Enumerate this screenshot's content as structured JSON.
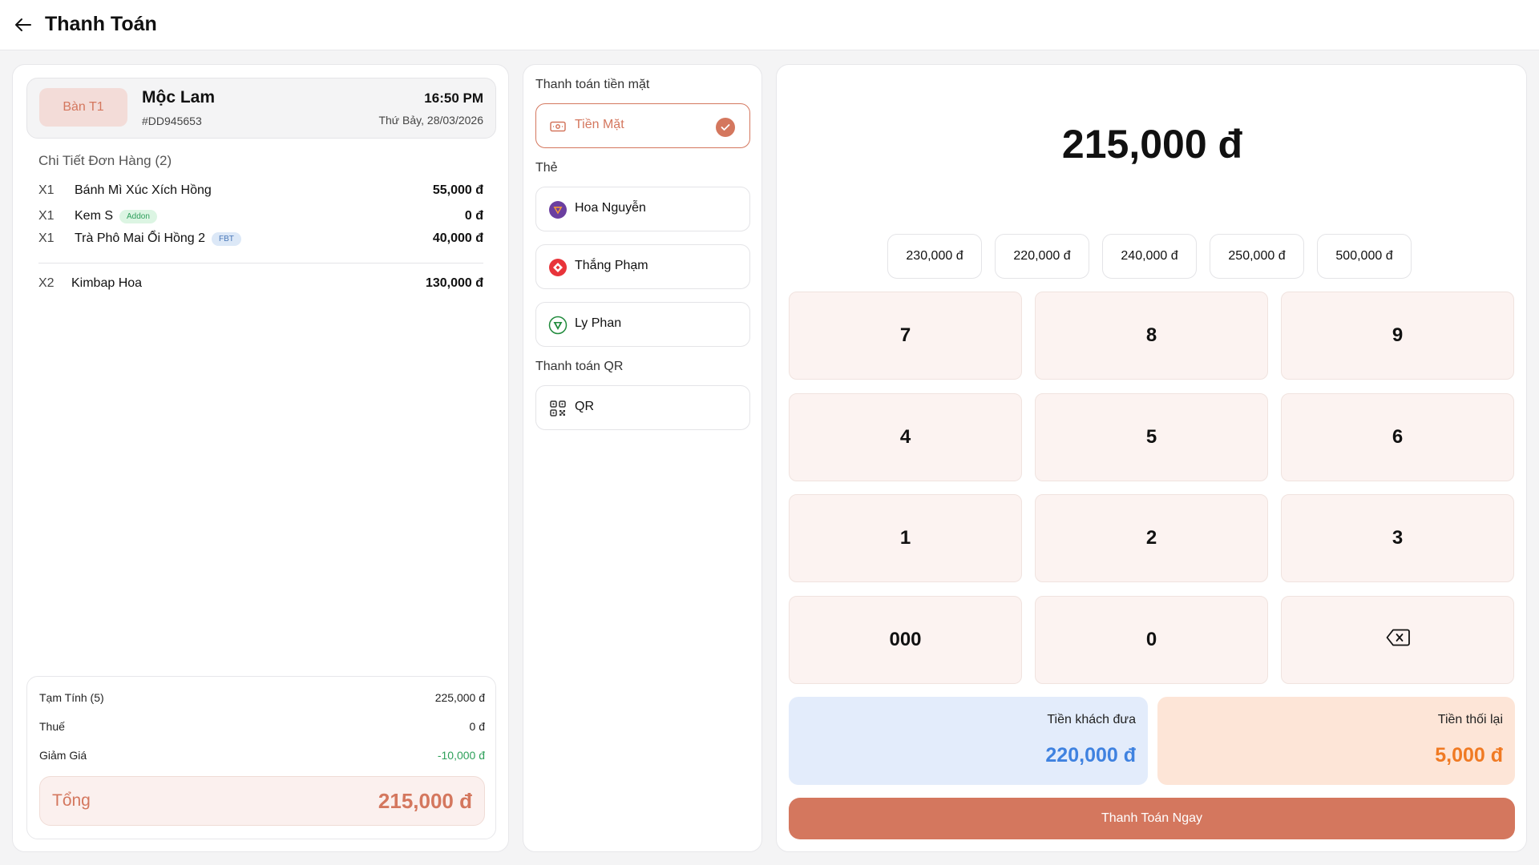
{
  "header": {
    "title": "Thanh Toán"
  },
  "order": {
    "table": "Bàn T1",
    "customer": "Mộc Lam",
    "id": "#DD945653",
    "time": "16:50 PM",
    "date": "Thứ Bảy, 28/03/2026",
    "detail_title": "Chi Tiết Đơn Hàng (2)",
    "items": [
      {
        "qty": "X1",
        "name": "Bánh Mì Xúc Xích Hồng",
        "price": "55,000 đ",
        "tag": ""
      },
      {
        "qty": "X1",
        "name": "Kem S",
        "price": "0 đ",
        "tag": "Addon"
      },
      {
        "qty": "X1",
        "name": "Trà Phô Mai Ổi Hồng 2",
        "price": "40,000 đ",
        "tag": "FBT"
      },
      {
        "qty": "X2",
        "name": "Kimbap Hoa",
        "price": "130,000 đ",
        "tag": ""
      }
    ]
  },
  "summary": {
    "subtotal_label": "Tạm Tính (5)",
    "subtotal": "225,000 đ",
    "tax_label": "Thuế",
    "tax": "0 đ",
    "discount_label": "Giảm Giá",
    "discount": "-10,000 đ",
    "total_label": "Tổng",
    "total": "215,000 đ"
  },
  "payment": {
    "cash_title": "Thanh toán tiền mặt",
    "cash_label": "Tiền Mặt",
    "card_title": "Thẻ",
    "cards": [
      {
        "name": "Hoa Nguyễn",
        "icon": "brand-triangle-icon",
        "color": "#6b3fa0"
      },
      {
        "name": "Thắng Phạm",
        "icon": "brand-diamond-icon",
        "color": "#e8343a"
      },
      {
        "name": "Ly Phan",
        "icon": "brand-shield-icon",
        "color": "#1f8a3b"
      }
    ],
    "qr_title": "Thanh toán QR",
    "qr_label": "QR"
  },
  "calculator": {
    "amount": "215,000 đ",
    "quick_amounts": [
      "230,000 đ",
      "220,000 đ",
      "240,000 đ",
      "250,000 đ",
      "500,000 đ"
    ],
    "keys": [
      "7",
      "8",
      "9",
      "4",
      "5",
      "6",
      "1",
      "2",
      "3",
      "000",
      "0"
    ],
    "given_label": "Tiền khách đưa",
    "given_value": "220,000 đ",
    "change_label": "Tiền thối lại",
    "change_value": "5,000 đ",
    "pay_button": "Thanh Toán Ngay"
  },
  "colors": {
    "accent": "#d4775e",
    "blue": "#3f82e0",
    "orange": "#f07a23",
    "green": "#2ea05a"
  }
}
